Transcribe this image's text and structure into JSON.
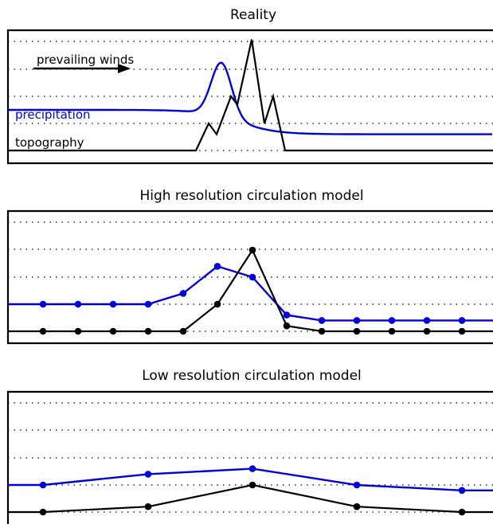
{
  "panels": [
    {
      "title": "Reality",
      "annotations": {
        "winds_label": "prevailing winds",
        "precip_label": "precipitation",
        "topo_label": "topography"
      },
      "colors": {
        "precipitation": "#0000dd",
        "topography": "#000000"
      },
      "precip_curve": {
        "baseline": 1.5,
        "peak": 3.5,
        "low": 0.6,
        "peak_x": 278
      },
      "topography_line": [
        [
          10,
          0
        ],
        [
          246,
          0
        ],
        [
          262,
          1
        ],
        [
          272,
          0.6
        ],
        [
          290,
          2
        ],
        [
          298,
          1.7
        ],
        [
          316,
          4.1
        ],
        [
          332,
          1
        ],
        [
          343,
          2
        ],
        [
          358,
          0
        ],
        [
          619,
          0
        ]
      ]
    },
    {
      "title": "High resolution circulation model",
      "colors": {
        "precipitation": "#0000dd",
        "topography": "#000000"
      },
      "precipitation": [
        [
          10,
          1
        ],
        [
          54,
          1
        ],
        [
          98,
          1
        ],
        [
          142,
          1
        ],
        [
          186,
          1
        ],
        [
          230,
          1.4
        ],
        [
          273,
          2.4
        ],
        [
          317,
          2
        ],
        [
          360,
          0.6
        ],
        [
          404,
          0.4
        ],
        [
          448,
          0.4
        ],
        [
          492,
          0.4
        ],
        [
          536,
          0.4
        ],
        [
          580,
          0.4
        ],
        [
          619,
          0.4
        ]
      ],
      "topography": [
        [
          10,
          0
        ],
        [
          54,
          0
        ],
        [
          98,
          0
        ],
        [
          142,
          0
        ],
        [
          186,
          0
        ],
        [
          230,
          0
        ],
        [
          273,
          1
        ],
        [
          317,
          3
        ],
        [
          360,
          0.2
        ],
        [
          404,
          0
        ],
        [
          448,
          0
        ],
        [
          492,
          0
        ],
        [
          536,
          0
        ],
        [
          580,
          0
        ],
        [
          619,
          0
        ]
      ],
      "markers": [
        54,
        98,
        142,
        186,
        230,
        273,
        317,
        360,
        404,
        448,
        492,
        536,
        580
      ]
    },
    {
      "title": "Low resolution circulation model",
      "colors": {
        "precipitation": "#0000dd",
        "topography": "#000000"
      },
      "precipitation": [
        [
          10,
          1
        ],
        [
          54,
          1
        ],
        [
          186,
          1.4
        ],
        [
          317,
          1.6
        ],
        [
          448,
          1
        ],
        [
          580,
          0.8
        ],
        [
          619,
          0.8
        ]
      ],
      "topography": [
        [
          10,
          0
        ],
        [
          54,
          0
        ],
        [
          186,
          0.2
        ],
        [
          317,
          1
        ],
        [
          448,
          0.2
        ],
        [
          580,
          0
        ],
        [
          619,
          0
        ]
      ],
      "markers": [
        54,
        186,
        317,
        448,
        580
      ]
    }
  ]
}
